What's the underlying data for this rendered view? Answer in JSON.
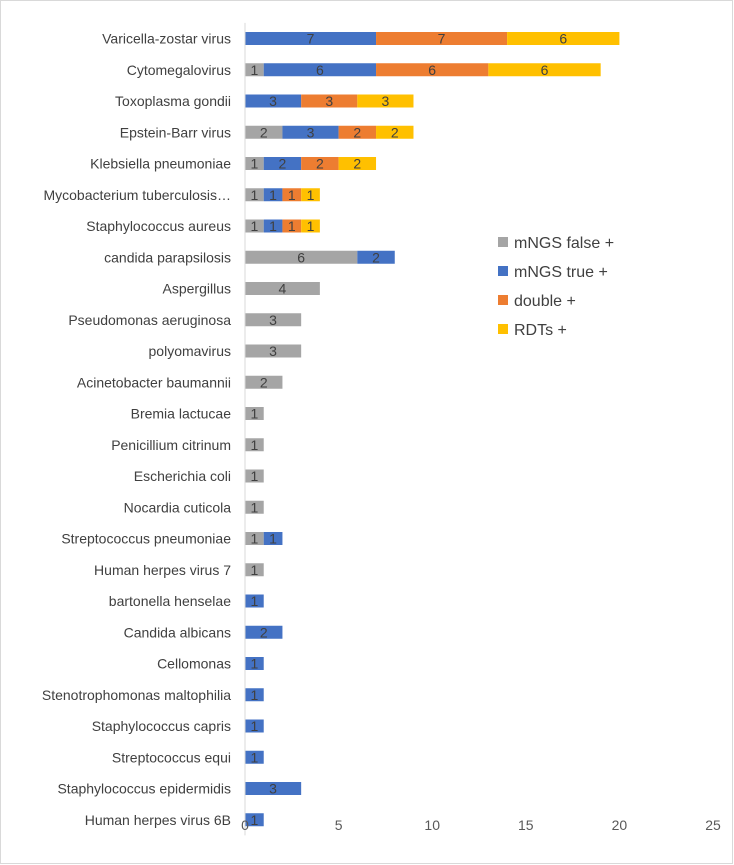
{
  "chart_data": {
    "type": "bar",
    "orientation": "horizontal",
    "stacked": true,
    "title": "",
    "xlabel": "",
    "ylabel": "",
    "xlim": [
      0,
      25
    ],
    "x_ticks": [
      0,
      5,
      10,
      15,
      20,
      25
    ],
    "grid": false,
    "legend_position": "right",
    "categories": [
      "Varicella-zostar virus",
      "Cytomegalovirus",
      "Toxoplasma gondii",
      "Epstein-Barr virus",
      "Klebsiella pneumoniae",
      "Mycobacterium tuberculosis…",
      "Staphylococcus aureus",
      "candida parapsilosis",
      "Aspergillus",
      "Pseudomonas aeruginosa",
      "polyomavirus",
      "Acinetobacter baumannii",
      "Bremia lactucae",
      "Penicillium citrinum",
      "Escherichia coli",
      "Nocardia cuticola",
      "Streptococcus pneumoniae",
      "Human herpes virus 7",
      "bartonella henselae",
      "Candida albicans",
      "Cellomonas",
      "Stenotrophomonas maltophilia",
      "Staphylococcus capris",
      "Streptococcus equi",
      "Staphylococcus epidermidis",
      "Human herpes virus 6B"
    ],
    "series": [
      {
        "name": "mNGS false +",
        "color": "#a5a5a5",
        "values": [
          0,
          1,
          0,
          2,
          1,
          1,
          1,
          6,
          4,
          3,
          3,
          2,
          1,
          1,
          1,
          1,
          1,
          1,
          0,
          0,
          0,
          0,
          0,
          0,
          0,
          0
        ]
      },
      {
        "name": "mNGS true +",
        "color": "#4472c4",
        "values": [
          7,
          6,
          3,
          3,
          2,
          1,
          1,
          2,
          0,
          0,
          0,
          0,
          0,
          0,
          0,
          0,
          1,
          0,
          1,
          2,
          1,
          1,
          1,
          1,
          3,
          1
        ]
      },
      {
        "name": "double +",
        "color": "#ed7d31",
        "values": [
          7,
          6,
          3,
          2,
          2,
          1,
          1,
          0,
          0,
          0,
          0,
          0,
          0,
          0,
          0,
          0,
          0,
          0,
          0,
          0,
          0,
          0,
          0,
          0,
          0,
          0
        ]
      },
      {
        "name": "RDTs +",
        "color": "#ffc000",
        "values": [
          6,
          6,
          3,
          2,
          2,
          1,
          1,
          0,
          0,
          0,
          0,
          0,
          0,
          0,
          0,
          0,
          0,
          0,
          0,
          0,
          0,
          0,
          0,
          0,
          0,
          0
        ]
      }
    ]
  }
}
